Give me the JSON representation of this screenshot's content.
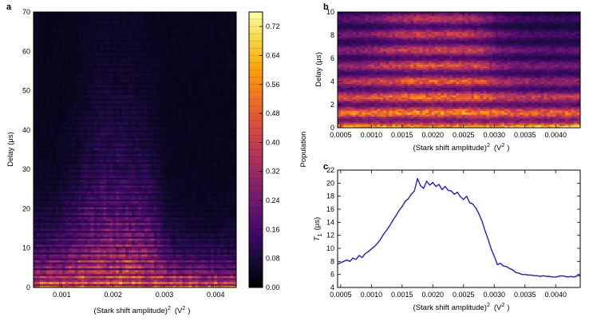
{
  "chart_data": [
    {
      "id": "a",
      "type": "heatmap",
      "panel_label": "a",
      "xlabel_main": "(Stark shift amplitude)",
      "xlabel_sup": "2",
      "xlabel_unit_open": "(V",
      "xlabel_unit_sup": "2",
      "xlabel_unit_close": ")",
      "ylabel": "Delay (μs)",
      "xlim": [
        0.00045,
        0.0044
      ],
      "ylim": [
        0,
        70
      ],
      "xticks": [
        0.001,
        0.002,
        0.003,
        0.004
      ],
      "xtick_labels": [
        "0.001",
        "0.002",
        "0.003",
        "0.004"
      ],
      "yticks": [
        0,
        10,
        20,
        30,
        40,
        50,
        60,
        70
      ],
      "ytick_labels": [
        "0",
        "10",
        "20",
        "30",
        "40",
        "50",
        "60",
        "70"
      ],
      "colormap": "inferno",
      "colorbar": {
        "label": "Population",
        "range": [
          0.0,
          0.76
        ],
        "ticks": [
          0.0,
          0.08,
          0.16,
          0.24,
          0.32,
          0.4,
          0.48,
          0.56,
          0.64,
          0.72
        ],
        "tick_labels": [
          "0.00",
          "0.08",
          "0.16",
          "0.24",
          "0.32",
          "0.40",
          "0.48",
          "0.56",
          "0.64",
          "0.72"
        ]
      },
      "t1_peak_x": 0.0021,
      "t1_peak_us": 20
    },
    {
      "id": "b",
      "type": "heatmap",
      "panel_label": "b",
      "xlabel_main": "(Stark shift amplitude)",
      "xlabel_sup": "2",
      "xlabel_unit_open": "(V",
      "xlabel_unit_sup": "2",
      "xlabel_unit_close": ")",
      "ylabel": "Delay (μs)",
      "xlim": [
        0.00045,
        0.0044
      ],
      "ylim": [
        0,
        10
      ],
      "xticks": [
        0.0005,
        0.001,
        0.0015,
        0.002,
        0.0025,
        0.003,
        0.0035,
        0.004
      ],
      "xtick_labels": [
        "0.0005",
        "0.0010",
        "0.0015",
        "0.0020",
        "0.0025",
        "0.0030",
        "0.0035",
        "0.0040"
      ],
      "yticks": [
        0,
        2,
        4,
        6,
        8,
        10
      ],
      "ytick_labels": [
        "0",
        "2",
        "4",
        "6",
        "8",
        "10"
      ],
      "colormap": "inferno"
    },
    {
      "id": "c",
      "type": "line",
      "panel_label": "c",
      "xlabel_main": "(Stark shift amplitude)",
      "xlabel_sup": "2",
      "xlabel_unit_open": "(V",
      "xlabel_unit_sup": "2",
      "xlabel_unit_close": ")",
      "ylabel_var": "T",
      "ylabel_sub": "1",
      "ylabel_unit": "(μs)",
      "xlim": [
        0.00045,
        0.0044
      ],
      "ylim": [
        4,
        22
      ],
      "xticks": [
        0.0005,
        0.001,
        0.0015,
        0.002,
        0.0025,
        0.003,
        0.0035,
        0.004
      ],
      "xtick_labels": [
        "0.0005",
        "0.0010",
        "0.0015",
        "0.0020",
        "0.0025",
        "0.0030",
        "0.0035",
        "0.0040"
      ],
      "yticks": [
        4,
        6,
        8,
        10,
        12,
        14,
        16,
        18,
        20,
        22
      ],
      "ytick_labels": [
        "4",
        "6",
        "8",
        "10",
        "12",
        "14",
        "16",
        "18",
        "20",
        "22"
      ],
      "line_color": "#1f1fd6",
      "series": [
        {
          "name": "T1",
          "x": [
            0.00045,
            0.0005,
            0.00055,
            0.0006,
            0.00065,
            0.0007,
            0.00075,
            0.0008,
            0.00085,
            0.0009,
            0.00095,
            0.001,
            0.00105,
            0.0011,
            0.00115,
            0.0012,
            0.00125,
            0.0013,
            0.00135,
            0.0014,
            0.00145,
            0.0015,
            0.00155,
            0.0016,
            0.00165,
            0.0017,
            0.00175,
            0.0018,
            0.00185,
            0.0019,
            0.00195,
            0.002,
            0.00205,
            0.0021,
            0.00215,
            0.0022,
            0.00225,
            0.0023,
            0.00235,
            0.0024,
            0.00245,
            0.0025,
            0.00255,
            0.0026,
            0.00265,
            0.0027,
            0.00275,
            0.0028,
            0.00285,
            0.0029,
            0.00295,
            0.003,
            0.00305,
            0.0031,
            0.00315,
            0.0032,
            0.00325,
            0.0033,
            0.00335,
            0.0034,
            0.00345,
            0.0035,
            0.00355,
            0.0036,
            0.00365,
            0.0037,
            0.00375,
            0.0038,
            0.00385,
            0.0039,
            0.00395,
            0.004,
            0.00405,
            0.0041,
            0.00415,
            0.0042,
            0.00425,
            0.0043,
            0.00435,
            0.0044
          ],
          "values": [
            7.6,
            7.8,
            8.0,
            8.2,
            8.0,
            8.5,
            8.3,
            8.9,
            8.6,
            9.2,
            9.5,
            9.9,
            10.3,
            10.8,
            11.4,
            12.2,
            12.8,
            13.5,
            14.3,
            15.0,
            15.8,
            16.4,
            17.2,
            17.6,
            18.3,
            18.8,
            20.7,
            19.6,
            19.2,
            20.3,
            19.7,
            20.1,
            19.5,
            19.8,
            19.0,
            19.5,
            18.9,
            18.8,
            18.3,
            18.6,
            17.9,
            17.5,
            18.0,
            17.0,
            16.8,
            16.2,
            15.3,
            14.2,
            12.7,
            11.4,
            9.9,
            8.8,
            7.5,
            7.7,
            7.3,
            7.2,
            6.9,
            6.7,
            6.3,
            6.2,
            6.0,
            6.0,
            5.9,
            5.9,
            5.8,
            5.8,
            5.7,
            5.8,
            5.7,
            5.7,
            5.6,
            5.6,
            5.7,
            5.8,
            5.7,
            5.6,
            5.7,
            5.6,
            5.8,
            5.8
          ]
        }
      ]
    }
  ]
}
